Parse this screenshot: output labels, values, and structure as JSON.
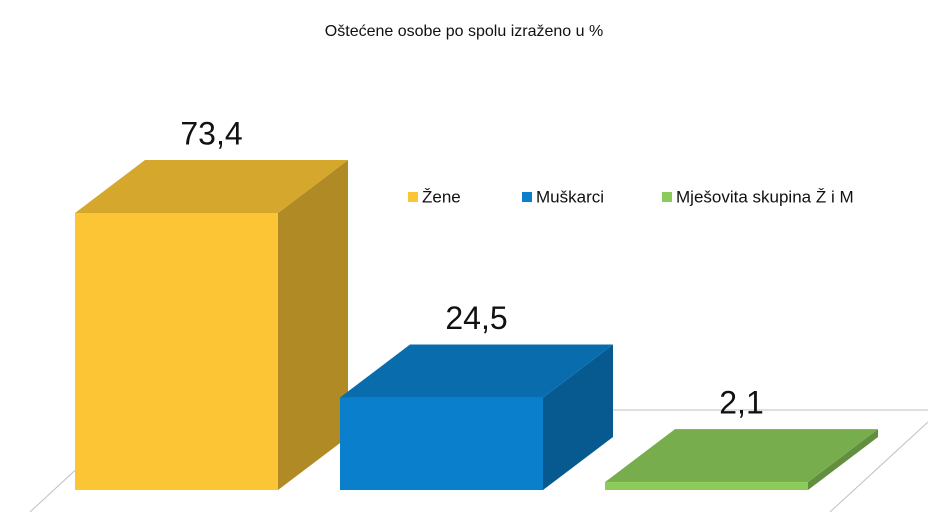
{
  "chart_data": {
    "type": "bar3d",
    "title": "Oštećene osobe po spolu izraženo u %",
    "series": [
      {
        "name": "Žene",
        "color": "#fbc535",
        "values": [
          73.4
        ],
        "value_labels": [
          "73,4"
        ]
      },
      {
        "name": "Muškarci",
        "color": "#0a80cc",
        "values": [
          24.5
        ],
        "value_labels": [
          "24,5"
        ]
      },
      {
        "name": "Mješovita skupina Ž i M",
        "color": "#8ccb5a",
        "values": [
          2.1
        ],
        "value_labels": [
          "2,1"
        ]
      }
    ],
    "ylim": [
      0,
      80
    ],
    "legend": "top-right"
  }
}
